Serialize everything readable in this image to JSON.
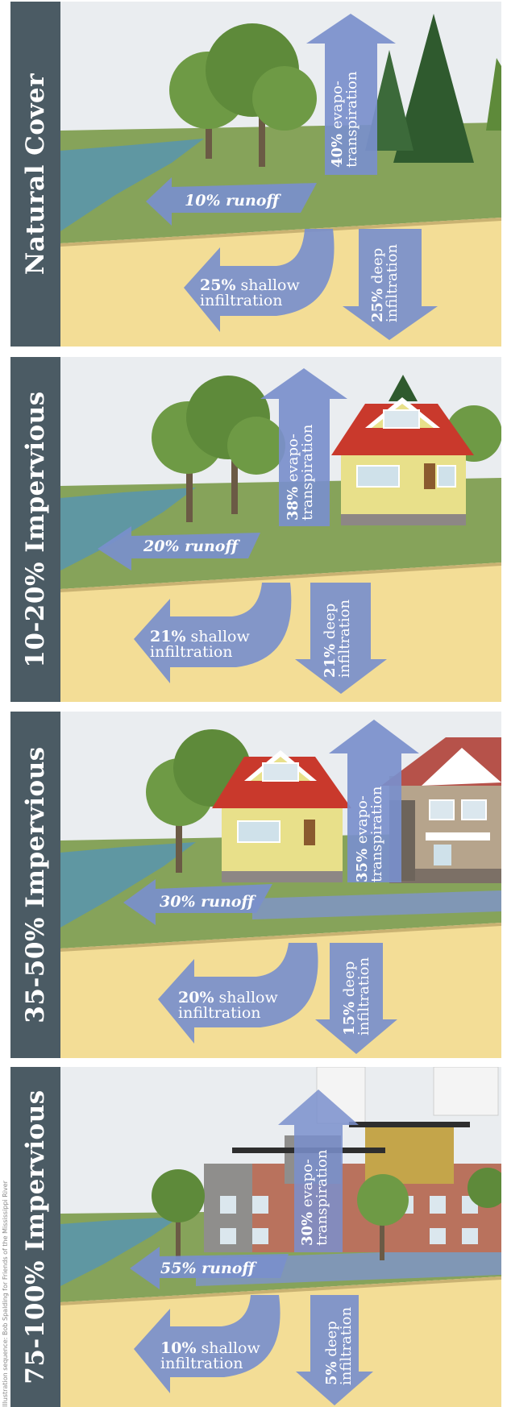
{
  "colors": {
    "tab": "#4b5b64",
    "arrow": "#7a8fcc",
    "sky": "#eaedf0",
    "grass": "#86a35a",
    "soil": "#f3dd96",
    "water": "#5f97a2",
    "roof": "#c9392c",
    "siding": "#e8e08a",
    "brick": "#b9725d",
    "tree": "#5e8a3a"
  },
  "credit": "Illustration sequence: Bob Spalding for Friends of the Mississippi River",
  "panels": [
    {
      "title": "Natural Cover",
      "evapo_pct": "40%",
      "evapo_word1": "evapo-",
      "evapo_word2": "transpiration",
      "runoff_pct": "10%",
      "runoff_word": "runoff",
      "shallow_pct": "25%",
      "shallow_word1": "shallow",
      "shallow_word2": "infiltration",
      "deep_pct": "25%",
      "deep_word1": "deep",
      "deep_word2": "infiltration"
    },
    {
      "title": "10-20% Impervious",
      "evapo_pct": "38%",
      "evapo_word1": "evapo-",
      "evapo_word2": "transpiration",
      "runoff_pct": "20%",
      "runoff_word": "runoff",
      "shallow_pct": "21%",
      "shallow_word1": "shallow",
      "shallow_word2": "infiltration",
      "deep_pct": "21%",
      "deep_word1": "deep",
      "deep_word2": "infiltration"
    },
    {
      "title": "35-50% Impervious",
      "evapo_pct": "35%",
      "evapo_word1": "evapo-",
      "evapo_word2": "transpiration",
      "runoff_pct": "30%",
      "runoff_word": "runoff",
      "shallow_pct": "20%",
      "shallow_word1": "shallow",
      "shallow_word2": "infiltration",
      "deep_pct": "15%",
      "deep_word1": "deep",
      "deep_word2": "infiltration"
    },
    {
      "title": "75-100% Impervious",
      "evapo_pct": "30%",
      "evapo_word1": "evapo-",
      "evapo_word2": "transpiration",
      "runoff_pct": "55%",
      "runoff_word": "runoff",
      "shallow_pct": "10%",
      "shallow_word1": "shallow",
      "shallow_word2": "infiltration",
      "deep_pct": "5%",
      "deep_word1": "deep",
      "deep_word2": "infiltration"
    }
  ]
}
